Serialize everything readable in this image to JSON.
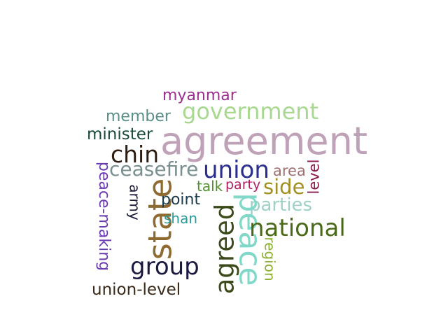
{
  "words": [
    {
      "text": "agreement",
      "color": "#bfa2b8",
      "orientation": "horizontal"
    },
    {
      "text": "government",
      "color": "#a8d890",
      "orientation": "horizontal"
    },
    {
      "text": "myanmar",
      "color": "#9a2f8f",
      "orientation": "horizontal"
    },
    {
      "text": "member",
      "color": "#5a8f8a",
      "orientation": "horizontal"
    },
    {
      "text": "minister",
      "color": "#1a4a3a",
      "orientation": "horizontal"
    },
    {
      "text": "chin",
      "color": "#2e1c10",
      "orientation": "horizontal"
    },
    {
      "text": "ceasefire",
      "color": "#7a8f90",
      "orientation": "horizontal"
    },
    {
      "text": "union",
      "color": "#2a2f8f",
      "orientation": "horizontal"
    },
    {
      "text": "area",
      "color": "#a07070",
      "orientation": "horizontal"
    },
    {
      "text": "level",
      "color": "#8a1a4a",
      "orientation": "vertical"
    },
    {
      "text": "talk",
      "color": "#4f8f2f",
      "orientation": "horizontal"
    },
    {
      "text": "party",
      "color": "#b02060",
      "orientation": "horizontal"
    },
    {
      "text": "side",
      "color": "#a09020",
      "orientation": "horizontal"
    },
    {
      "text": "parties",
      "color": "#a0d0c8",
      "orientation": "horizontal"
    },
    {
      "text": "peace-making",
      "color": "#6a3ab0",
      "orientation": "vertical"
    },
    {
      "text": "army",
      "color": "#1a1a3a",
      "orientation": "vertical"
    },
    {
      "text": "state",
      "color": "#8f6a30",
      "orientation": "vertical"
    },
    {
      "text": "point",
      "color": "#1a3a4a",
      "orientation": "horizontal"
    },
    {
      "text": "shan",
      "color": "#2a9a9a",
      "orientation": "horizontal"
    },
    {
      "text": "agreed",
      "color": "#3a4a1a",
      "orientation": "vertical"
    },
    {
      "text": "peace",
      "color": "#80d8c8",
      "orientation": "vertical"
    },
    {
      "text": "national",
      "color": "#4a6a1a",
      "orientation": "horizontal"
    },
    {
      "text": "region",
      "color": "#8ab030",
      "orientation": "vertical"
    },
    {
      "text": "group",
      "color": "#1a1a40",
      "orientation": "horizontal"
    },
    {
      "text": "union-level",
      "color": "#3a2a1a",
      "orientation": "horizontal"
    }
  ]
}
